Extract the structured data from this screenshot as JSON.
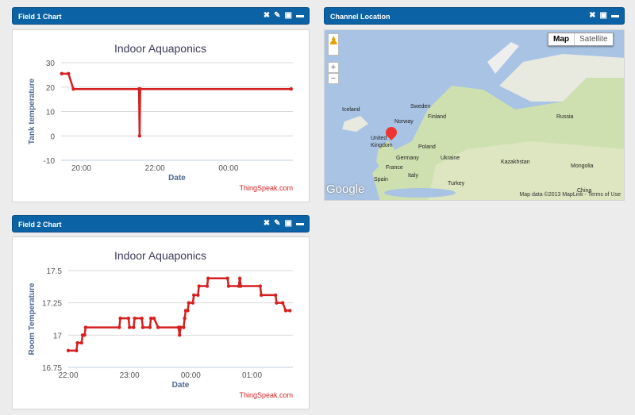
{
  "panels": {
    "field1": {
      "title": "Field 1 Chart"
    },
    "field2": {
      "title": "Field 2 Chart"
    },
    "map": {
      "title": "Channel Location",
      "map_label": "Map",
      "satellite_label": "Satellite",
      "zoom_in": "+",
      "zoom_out": "−",
      "labels": [
        "Iceland",
        "Finland",
        "Sweden",
        "Norway",
        "United Kingdom",
        "Poland",
        "Germany",
        "Ukraine",
        "France",
        "Italy",
        "Spain",
        "Turkey",
        "Russia",
        "Kazakhstan",
        "Mongolia",
        "China"
      ],
      "attribution": "Map data ©2013 MapLink - Terms of Use",
      "logo": "Google"
    }
  },
  "credit": "ThingSpeak.com",
  "colors": {
    "header": "#0b62a4",
    "series": "#d62020"
  },
  "chart_data": [
    {
      "type": "line",
      "title": "Indoor Aquaponics",
      "xlabel": "Date",
      "ylabel": "Tank temperature",
      "ylim": [
        -10,
        30
      ],
      "yticks": [
        "30",
        "20",
        "10",
        "0",
        "-10"
      ],
      "xticks": [
        "20:00",
        "22:00",
        "00:00"
      ],
      "xrange": [
        "19:27",
        "01:45"
      ],
      "grid": true,
      "x": [
        "19:28",
        "19:39",
        "19:47",
        "21:34",
        "21:35",
        "21:36",
        "01:42"
      ],
      "values": [
        25.5,
        25.5,
        19.2,
        19.2,
        0,
        19.2,
        19.2
      ]
    },
    {
      "type": "line",
      "title": "Indoor Aquaponics",
      "xlabel": "Date",
      "ylabel": "Room Temperature",
      "ylim": [
        16.75,
        17.5
      ],
      "yticks": [
        "17.5",
        "17.25",
        "17",
        "16.75"
      ],
      "xticks": [
        "22:00",
        "23:00",
        "00:00",
        "01:00"
      ],
      "xrange": [
        "22:00",
        "01:40"
      ],
      "grid": true,
      "x": [
        "22:00",
        "22:08",
        "22:09",
        "22:13",
        "22:14",
        "22:16",
        "22:17",
        "22:50",
        "22:51",
        "22:59",
        "23:00",
        "23:04",
        "23:05",
        "23:12",
        "23:13",
        "23:20",
        "23:21",
        "23:24",
        "23:28",
        "23:48",
        "23:49",
        "23:50",
        "23:53",
        "23:54",
        "23:55",
        "23:57",
        "23:58",
        "00:02",
        "00:03",
        "00:07",
        "00:08",
        "00:16",
        "00:17",
        "00:36",
        "00:37",
        "00:47",
        "00:48",
        "00:49",
        "01:08",
        "01:09",
        "01:23",
        "01:24",
        "01:30",
        "01:33",
        "01:37"
      ],
      "values": [
        16.88,
        16.88,
        16.94,
        16.94,
        17.0,
        17.0,
        17.06,
        17.06,
        17.13,
        17.13,
        17.06,
        17.06,
        17.13,
        17.13,
        17.06,
        17.06,
        17.13,
        17.13,
        17.06,
        17.06,
        17.0,
        17.06,
        17.06,
        17.13,
        17.19,
        17.19,
        17.25,
        17.25,
        17.31,
        17.31,
        17.38,
        17.38,
        17.44,
        17.44,
        17.38,
        17.38,
        17.44,
        17.38,
        17.38,
        17.31,
        17.31,
        17.25,
        17.25,
        17.19,
        17.19
      ]
    }
  ]
}
